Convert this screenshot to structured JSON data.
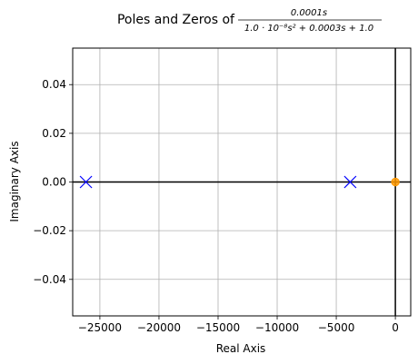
{
  "chart_data": {
    "type": "scatter",
    "title_prefix": "Poles and Zeros of",
    "title_numerator": "0.0001s",
    "title_denominator": "1.0 · 10⁻⁸s² + 0.0003s + 1.0",
    "xlabel": "Real Axis",
    "ylabel": "Imaginary Axis",
    "xlim": [
      -27300,
      1300
    ],
    "ylim": [
      -0.055,
      0.055
    ],
    "xticks": [
      -25000,
      -20000,
      -15000,
      -10000,
      -5000,
      0
    ],
    "xtick_labels": [
      "−25000",
      "−20000",
      "−15000",
      "−10000",
      "−5000",
      "0"
    ],
    "yticks": [
      0.04,
      0.02,
      0.0,
      -0.02,
      -0.04
    ],
    "ytick_labels": [
      "0.04",
      "0.02",
      "0.00",
      "−0.02",
      "−0.04"
    ],
    "grid": true,
    "poles": [
      {
        "x": -26180,
        "y": 0
      },
      {
        "x": -3820,
        "y": 0
      }
    ],
    "zeros": [
      {
        "x": 0,
        "y": 0
      }
    ],
    "pole_color": "#0000ff",
    "zero_color": "#ff9900"
  }
}
